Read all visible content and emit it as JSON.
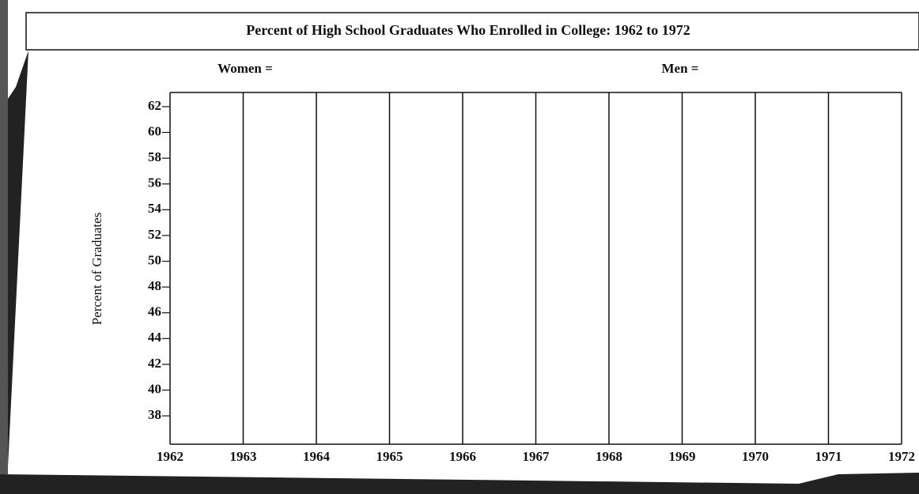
{
  "chart_data": {
    "type": "line",
    "title": "Percent of High School Graduates Who Enrolled in College:  1962 to 1972",
    "y_label": "Percent of Graduates",
    "x": [
      1962,
      1963,
      1964,
      1965,
      1966,
      1967,
      1968,
      1969,
      1970,
      1971,
      1972
    ],
    "series": [
      {
        "name": "Women =",
        "values": [
          null,
          null,
          null,
          null,
          null,
          null,
          null,
          null,
          null,
          null,
          null
        ]
      },
      {
        "name": "Men =",
        "values": [
          null,
          null,
          null,
          null,
          null,
          null,
          null,
          null,
          null,
          null,
          null
        ]
      }
    ],
    "xlim": [
      1962,
      1972
    ],
    "xticks": [
      1962,
      1963,
      1964,
      1965,
      1966,
      1967,
      1968,
      1969,
      1970,
      1971,
      1972
    ],
    "ylim": [
      35.8,
      63.1
    ],
    "yticks": [
      38,
      40,
      42,
      44,
      46,
      48,
      50,
      52,
      54,
      56,
      58,
      60,
      62
    ],
    "grid": true
  }
}
